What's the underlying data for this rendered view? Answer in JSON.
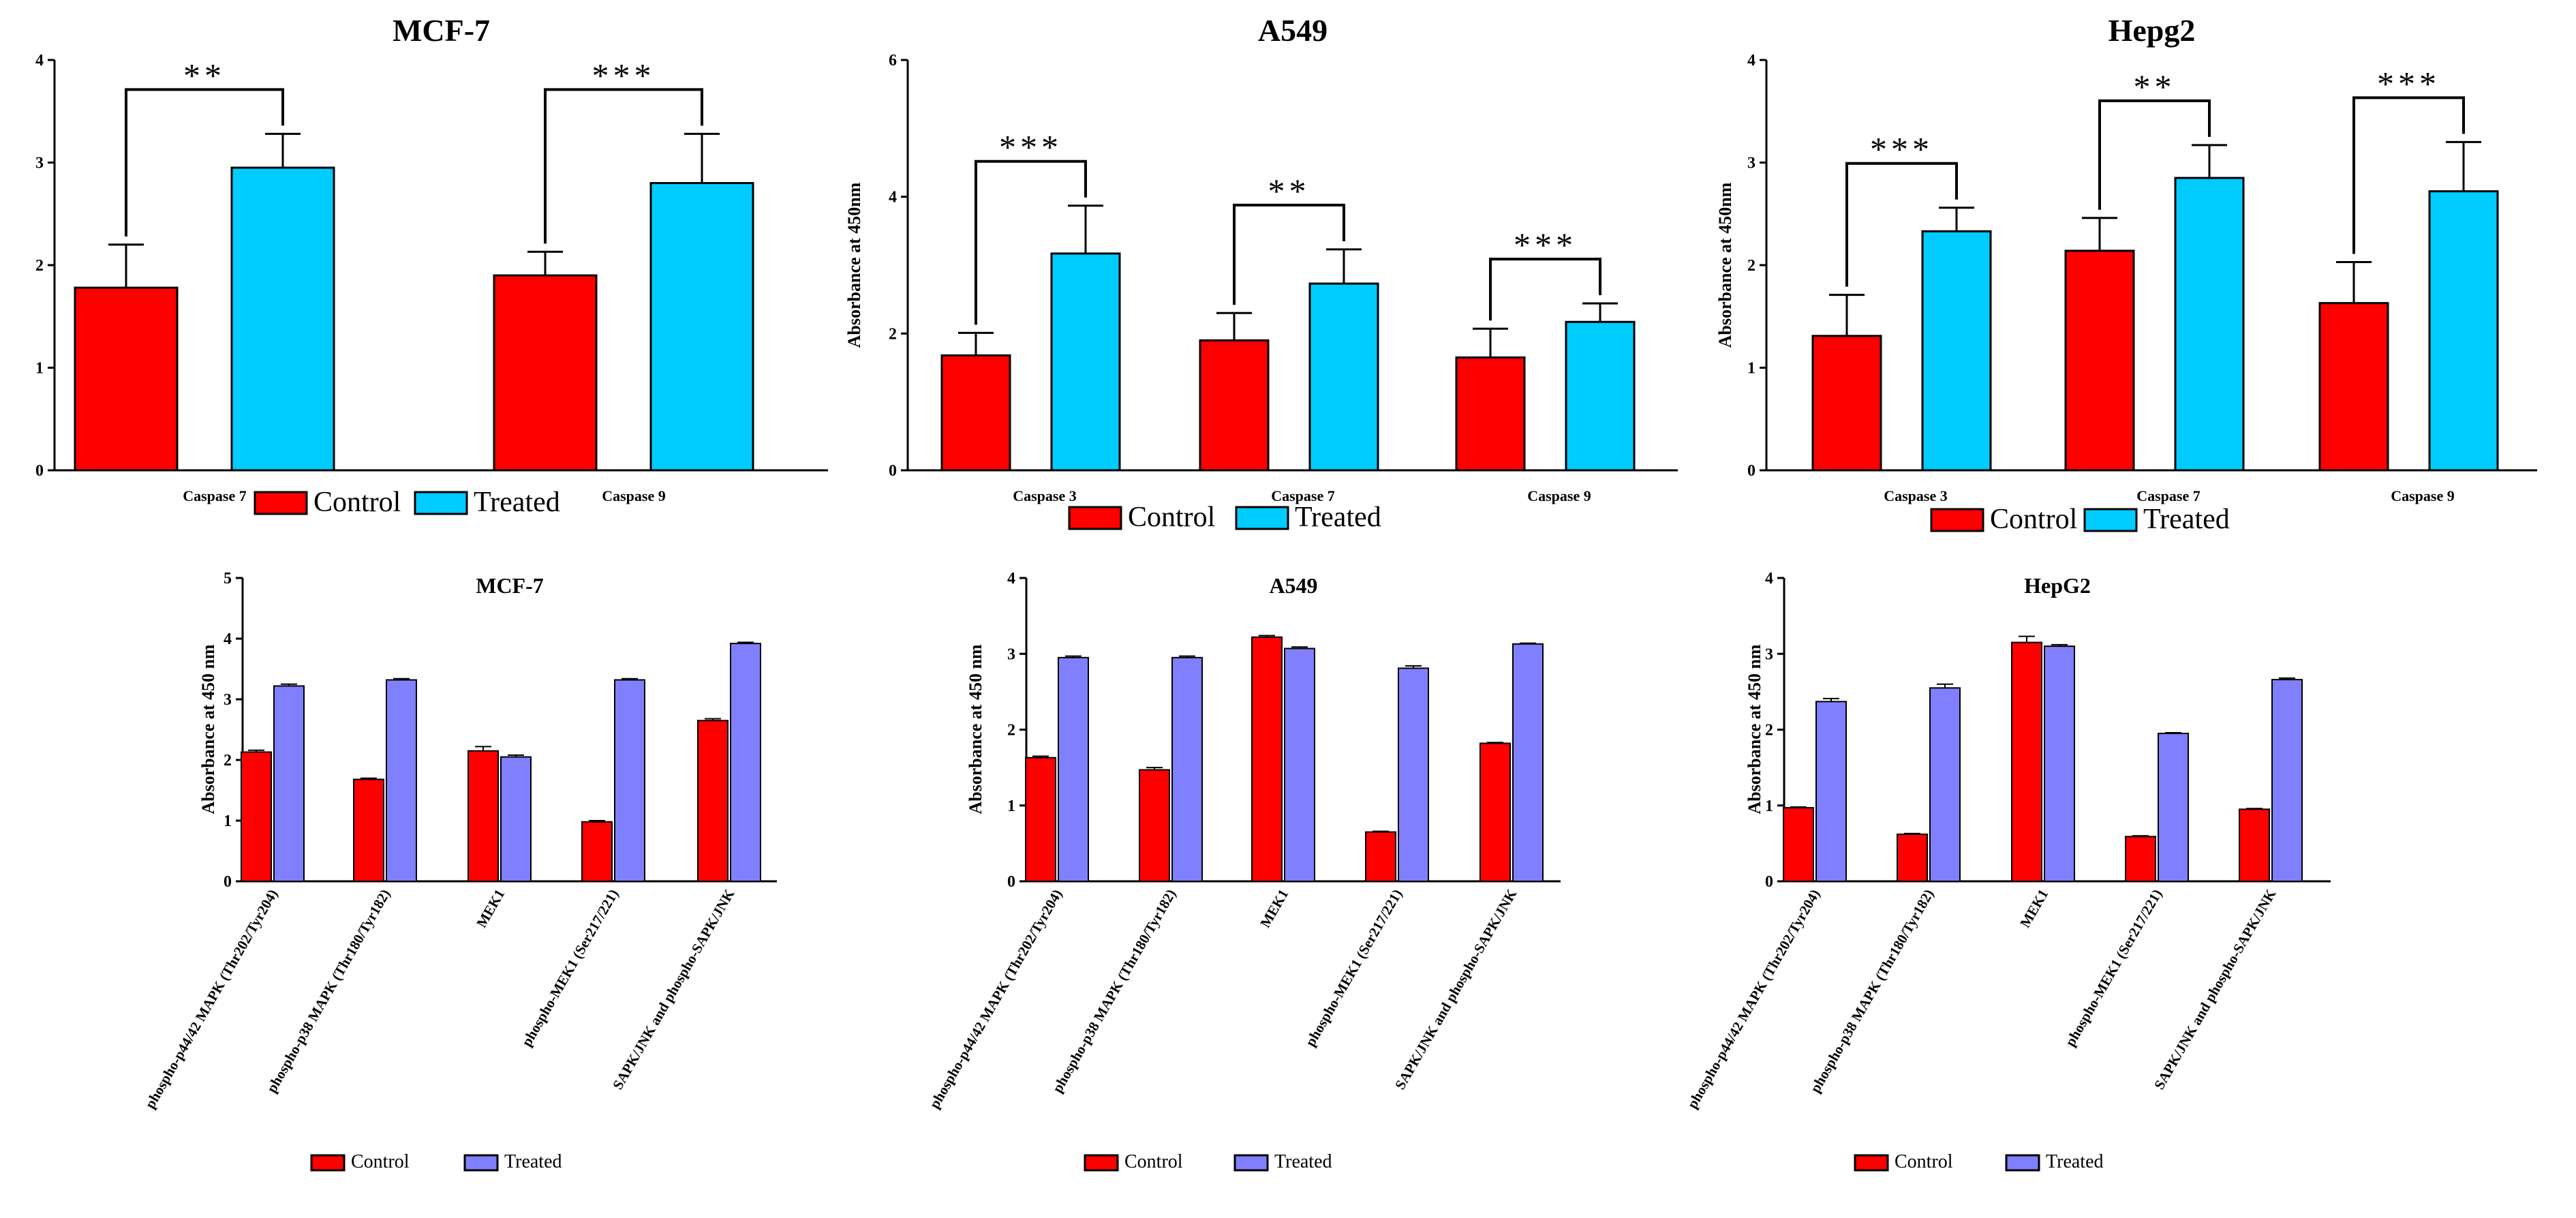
{
  "chart_data": [
    {
      "type": "bar",
      "title": "MCF-7",
      "ylabel": "",
      "ylim": [
        0,
        4
      ],
      "yticks": [
        "0",
        "1",
        "2",
        "3",
        "4"
      ],
      "categories": [
        "Caspase 7",
        "Caspase 9"
      ],
      "series": [
        {
          "name": "Control",
          "values": [
            1.78,
            1.9
          ],
          "errors": [
            0.42,
            0.23
          ]
        },
        {
          "name": "Treated",
          "values": [
            2.95,
            2.8
          ],
          "errors": [
            0.33,
            0.48
          ]
        }
      ],
      "significance": [
        "**",
        "***"
      ],
      "legend": [
        "Control",
        "Treated"
      ],
      "colors": [
        "#ff0000",
        "#00ccff"
      ]
    },
    {
      "type": "bar",
      "title": "A549",
      "ylabel": "Absorbance at 450nm",
      "ylim": [
        0,
        6
      ],
      "yticks": [
        "0",
        "2",
        "4",
        "6"
      ],
      "categories": [
        "Caspase 3",
        "Caspase 7",
        "Caspase 9"
      ],
      "series": [
        {
          "name": "Control",
          "values": [
            1.68,
            1.9,
            1.65
          ],
          "errors": [
            0.33,
            0.4,
            0.42
          ]
        },
        {
          "name": "Treated",
          "values": [
            3.17,
            2.73,
            2.17
          ],
          "errors": [
            0.7,
            0.5,
            0.27
          ]
        }
      ],
      "significance": [
        "***",
        "**",
        "***"
      ],
      "legend": [
        "Control",
        "Treated"
      ],
      "colors": [
        "#ff0000",
        "#00ccff"
      ]
    },
    {
      "type": "bar",
      "title": "Hepg2",
      "ylabel": "Absorbance at 450nm",
      "ylim": [
        0,
        4
      ],
      "yticks": [
        "0",
        "1",
        "2",
        "3",
        "4"
      ],
      "categories": [
        "Caspase 3",
        "Caspase 7",
        "Caspase 9"
      ],
      "series": [
        {
          "name": "Control",
          "values": [
            1.31,
            2.14,
            1.63
          ],
          "errors": [
            0.4,
            0.32,
            0.4
          ]
        },
        {
          "name": "Treated",
          "values": [
            2.33,
            2.85,
            2.72
          ],
          "errors": [
            0.23,
            0.32,
            0.48
          ]
        }
      ],
      "significance": [
        "***",
        "**",
        "***"
      ],
      "legend": [
        "Control",
        "Treated"
      ],
      "colors": [
        "#ff0000",
        "#00ccff"
      ]
    },
    {
      "type": "bar",
      "title": "MCF-7",
      "ylabel": "Absorbance at 450 nm",
      "ylim": [
        0,
        5
      ],
      "yticks": [
        "0",
        "1",
        "2",
        "3",
        "4",
        "5"
      ],
      "categories": [
        "phospho-p44/42 MAPK (Thr202/Tyr204)",
        "phospho-p38 MAPK (Thr180/Tyr182)",
        "MEK1",
        "phospho-MEK1 (Ser217/221)",
        "SAPK/JNK and phospho-SAPK/JNK"
      ],
      "series": [
        {
          "name": "Control",
          "values": [
            2.13,
            1.68,
            2.15,
            0.98,
            2.65
          ],
          "errors": [
            0.03,
            0.02,
            0.07,
            0.02,
            0.03
          ]
        },
        {
          "name": "Treated",
          "values": [
            3.22,
            3.32,
            2.05,
            3.32,
            3.92
          ],
          "errors": [
            0.03,
            0.02,
            0.03,
            0.02,
            0.02
          ]
        }
      ],
      "legend": [
        "Control",
        "Treated"
      ],
      "colors": [
        "#ff0000",
        "#8080ff"
      ]
    },
    {
      "type": "bar",
      "title": "A549",
      "ylabel": "Absorbance at 450 nm",
      "ylim": [
        0,
        4
      ],
      "yticks": [
        "0",
        "1",
        "2",
        "3",
        "4"
      ],
      "categories": [
        "phospho-p44/42 MAPK (Thr202/Tyr204)",
        "phospho-p38 MAPK (Thr180/Tyr182)",
        "MEK1",
        "phospho-MEK1 (Ser217/221)",
        "SAPK/JNK and phospho-SAPK/JNK"
      ],
      "series": [
        {
          "name": "Control",
          "values": [
            1.63,
            1.47,
            3.22,
            0.65,
            1.82
          ],
          "errors": [
            0.02,
            0.03,
            0.02,
            0.01,
            0.01
          ]
        },
        {
          "name": "Treated",
          "values": [
            2.95,
            2.95,
            3.07,
            2.81,
            3.13
          ],
          "errors": [
            0.02,
            0.02,
            0.02,
            0.03,
            0.01
          ]
        }
      ],
      "legend": [
        "Control",
        "Treated"
      ],
      "colors": [
        "#ff0000",
        "#8080ff"
      ]
    },
    {
      "type": "bar",
      "title": "HepG2",
      "ylabel": "Absorbance at 450 nm",
      "ylim": [
        0,
        4
      ],
      "yticks": [
        "0",
        "1",
        "2",
        "3",
        "4"
      ],
      "categories": [
        "phospho-p44/42 MAPK (Thr202/Tyr204)",
        "phospho-p38 MAPK (Thr180/Tyr182)",
        "MEK1",
        "phospho-MEK1 (Ser217/221)",
        "SAPK/JNK and phospho-SAPK/JNK"
      ],
      "series": [
        {
          "name": "Control",
          "values": [
            0.97,
            0.62,
            3.15,
            0.59,
            0.95
          ],
          "errors": [
            0.01,
            0.01,
            0.08,
            0.01,
            0.01
          ]
        },
        {
          "name": "Treated",
          "values": [
            2.37,
            2.55,
            3.1,
            1.95,
            2.66
          ],
          "errors": [
            0.04,
            0.05,
            0.02,
            0.01,
            0.02
          ]
        }
      ],
      "legend": [
        "Control",
        "Treated"
      ],
      "colors": [
        "#ff0000",
        "#8080ff"
      ]
    }
  ]
}
